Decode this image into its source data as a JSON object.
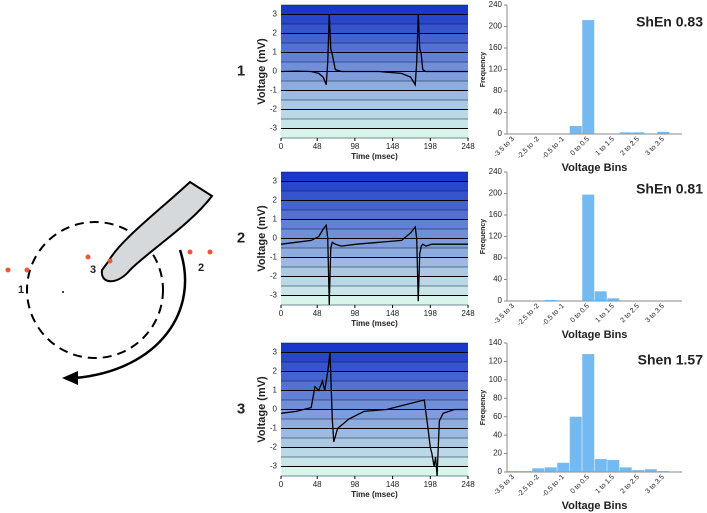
{
  "diagram": {
    "labels": [
      "1",
      "2",
      "3"
    ]
  },
  "chart_data": [
    {
      "type": "line",
      "panel": "1",
      "xlabel": "Time (msec)",
      "ylabel": "Voltage (mV)",
      "xlim": [
        0,
        248
      ],
      "xticks": [
        0,
        48,
        98,
        148,
        198,
        248
      ],
      "ylim": [
        -3.5,
        3.5
      ],
      "yticks": [
        -3,
        -2,
        -1,
        0,
        1,
        2,
        3
      ],
      "grid": true,
      "color": "#000000",
      "x": [
        0,
        20,
        40,
        50,
        56,
        60,
        62,
        64,
        66,
        68,
        72,
        80,
        100,
        130,
        160,
        172,
        178,
        180,
        182,
        184,
        186,
        188,
        192,
        200,
        220,
        248
      ],
      "values": [
        0,
        0.02,
        0,
        -0.1,
        -0.3,
        -0.7,
        0.5,
        3,
        1.2,
        0.9,
        0.1,
        0,
        0,
        0,
        -0.1,
        -0.3,
        -0.7,
        0.5,
        3,
        1.2,
        0.9,
        0.1,
        0,
        0,
        0,
        0
      ]
    },
    {
      "type": "bar",
      "title": "ShEn 0.83",
      "xlabel": "Voltage Bins",
      "ylabel": "Frequency",
      "ylim": [
        0,
        240
      ],
      "yticks": [
        0,
        40,
        80,
        120,
        160,
        200,
        240
      ],
      "color": "#5aaef0",
      "categories": [
        "-3.5 to 3",
        null,
        "-2.5 to -2",
        null,
        "-0.5 to -1",
        null,
        "0 to 0.5",
        null,
        "1 to 1.5",
        null,
        "2 to 2.5",
        null,
        "3 to 3.5",
        null
      ],
      "values": [
        0,
        0,
        0,
        0,
        0,
        15,
        212,
        0,
        0,
        3,
        3,
        0,
        4,
        0
      ]
    },
    {
      "type": "line",
      "panel": "2",
      "xlabel": "Time (msec)",
      "ylabel": "Voltage (mV)",
      "xlim": [
        0,
        248
      ],
      "xticks": [
        0,
        48,
        98,
        148,
        198,
        248
      ],
      "ylim": [
        -3.5,
        3.5
      ],
      "yticks": [
        -3,
        -2,
        -1,
        0,
        1,
        2,
        3
      ],
      "grid": true,
      "color": "#000000",
      "x": [
        0,
        20,
        40,
        50,
        56,
        60,
        62,
        64,
        66,
        68,
        72,
        80,
        100,
        130,
        160,
        172,
        178,
        180,
        182,
        184,
        186,
        188,
        192,
        200,
        220,
        248
      ],
      "values": [
        -0.3,
        -0.2,
        -0.1,
        0.1,
        0.5,
        0.7,
        0,
        -3.5,
        -0.5,
        -0.2,
        -0.3,
        -0.4,
        -0.3,
        -0.2,
        -0.1,
        0.3,
        0.6,
        0,
        -3.3,
        -0.8,
        -0.4,
        -0.3,
        -0.4,
        -0.3,
        -0.3,
        -0.3
      ]
    },
    {
      "type": "bar",
      "title": "ShEn 0.81",
      "xlabel": "Voltage Bins",
      "ylabel": "Frequency",
      "ylim": [
        0,
        240
      ],
      "yticks": [
        0,
        40,
        80,
        120,
        160,
        200,
        240
      ],
      "color": "#5aaef0",
      "categories": [
        "-3.5 to 3",
        null,
        "-2.5 to -2",
        null,
        "-0.5 to -1",
        null,
        "0 to 0.5",
        null,
        "1 to 1.5",
        null,
        "2 to 2.5",
        null,
        "3 to 3.5",
        null
      ],
      "values": [
        0,
        0,
        0,
        2,
        0,
        0,
        198,
        18,
        5,
        0,
        0,
        0,
        0,
        0
      ]
    },
    {
      "type": "line",
      "panel": "3",
      "xlabel": "Time (msec)",
      "ylabel": "Voltage (mV)",
      "xlim": [
        0,
        248
      ],
      "xticks": [
        0,
        48,
        98,
        148,
        198,
        248
      ],
      "ylim": [
        -3.5,
        3.5
      ],
      "yticks": [
        -3,
        -2,
        -1,
        0,
        1,
        2,
        3
      ],
      "grid": true,
      "color": "#000000",
      "x": [
        0,
        20,
        40,
        45,
        50,
        55,
        58,
        60,
        62,
        65,
        68,
        70,
        75,
        90,
        110,
        140,
        170,
        190,
        195,
        198,
        200,
        203,
        205,
        207,
        210,
        215,
        230,
        248
      ],
      "values": [
        -0.2,
        -0.1,
        0.1,
        1.2,
        1,
        1.5,
        1,
        1.5,
        2,
        3,
        -0.5,
        -1.7,
        -1.0,
        -0.5,
        -0.1,
        0,
        0.3,
        0.5,
        -1,
        -2,
        -2.3,
        -3,
        -2.5,
        -3.5,
        -0.6,
        -0.2,
        0,
        0
      ]
    },
    {
      "type": "bar",
      "title": "Shen 1.57",
      "xlabel": "Voltage Bins",
      "ylabel": "Frequency",
      "ylim": [
        0,
        140
      ],
      "yticks": [
        0,
        20,
        40,
        60,
        80,
        100,
        120,
        140
      ],
      "color": "#5aaef0",
      "categories": [
        "-3.5 to 3",
        null,
        "-2.5 to -2",
        null,
        "-0.5 to -1",
        null,
        "0 to 0.5",
        null,
        "1 to 1.5",
        null,
        "2 to 2.5",
        null,
        "3 to 3.5",
        null
      ],
      "values": [
        1,
        1,
        4,
        5,
        10,
        60,
        128,
        14,
        13,
        5,
        2,
        3,
        1,
        0
      ]
    }
  ]
}
